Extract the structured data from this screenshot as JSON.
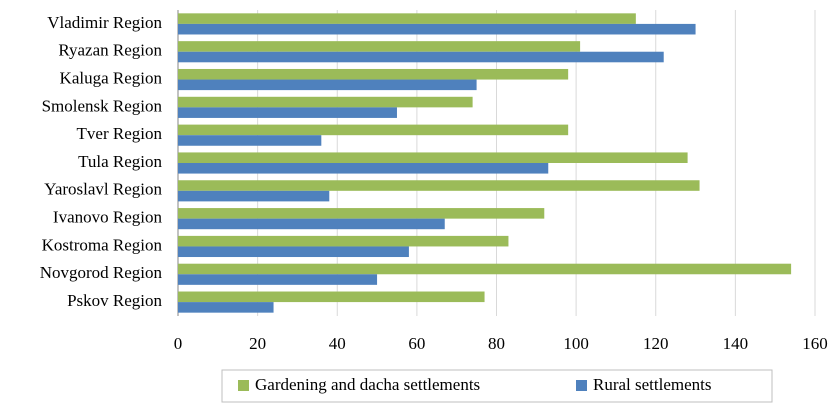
{
  "chart_data": {
    "type": "hbar",
    "categories": [
      "Vladimir Region",
      "Ryazan Region",
      "Kaluga Region",
      "Smolensk Region",
      "Tver Region",
      "Tula Region",
      "Yaroslavl Region",
      "Ivanovo Region",
      "Kostroma Region",
      "Novgorod Region",
      "Pskov Region"
    ],
    "series": [
      {
        "name": "Gardening and dacha settlements",
        "color": "#9bbb59",
        "values": [
          115,
          101,
          98,
          74,
          98,
          128,
          131,
          92,
          83,
          154,
          77
        ]
      },
      {
        "name": "Rural settlements",
        "color": "#4f81bd",
        "values": [
          130,
          122,
          75,
          55,
          36,
          93,
          38,
          67,
          58,
          50,
          24
        ]
      }
    ],
    "xlim": [
      0,
      160
    ],
    "xticks": [
      0,
      20,
      40,
      60,
      80,
      100,
      120,
      140,
      160
    ],
    "grid": true,
    "legend": "bottom"
  }
}
